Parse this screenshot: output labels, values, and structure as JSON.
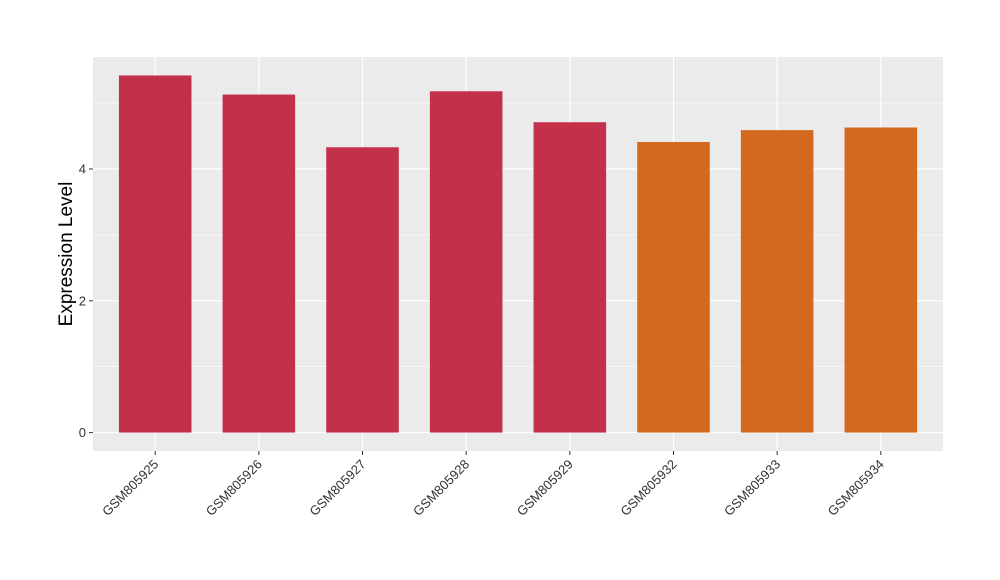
{
  "chart_data": {
    "type": "bar",
    "title": "",
    "xlabel": "",
    "ylabel": "Expression Level",
    "categories": [
      "GSM805925",
      "GSM805926",
      "GSM805927",
      "GSM805928",
      "GSM805929",
      "GSM805932",
      "GSM805933",
      "GSM805934"
    ],
    "values": [
      5.42,
      5.13,
      4.33,
      5.18,
      4.71,
      4.41,
      4.59,
      4.63
    ],
    "colors": [
      "#c3304a",
      "#c3304a",
      "#c3304a",
      "#c3304a",
      "#c3304a",
      "#d2691e",
      "#d2691e",
      "#d2691e"
    ],
    "ylim": [
      -0.28,
      5.7
    ],
    "yticks": [
      0,
      2,
      4
    ],
    "ytick_labels": [
      "0",
      "2",
      "4"
    ],
    "grid": true,
    "legend": "none",
    "panel_background": "#ebebeb",
    "grid_color": "#ffffff"
  }
}
